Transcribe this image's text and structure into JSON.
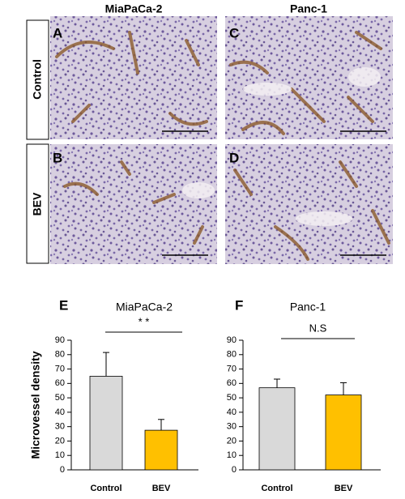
{
  "panels": {
    "columns": [
      "MiaPaCa-2",
      "Panc-1"
    ],
    "rows": [
      "Control",
      "BEV"
    ],
    "letters": [
      "A",
      "B",
      "C",
      "D"
    ]
  },
  "chart_data": [
    {
      "type": "bar",
      "letter": "E",
      "title": "MiaPaCa-2",
      "y_label": "Microvessel density",
      "categories": [
        "Control",
        "BEV"
      ],
      "values": [
        65,
        27.5
      ],
      "errors": [
        16.5,
        7.5
      ],
      "colors": [
        "#d9d9d9",
        "#ffc000"
      ],
      "ylim": [
        0,
        90
      ],
      "yticks": [
        0,
        10,
        20,
        30,
        40,
        50,
        60,
        70,
        80,
        90
      ],
      "annotation": "* *"
    },
    {
      "type": "bar",
      "letter": "F",
      "title": "Panc-1",
      "categories": [
        "Control",
        "BEV"
      ],
      "values": [
        57,
        52
      ],
      "errors": [
        6,
        8.5
      ],
      "colors": [
        "#d9d9d9",
        "#ffc000"
      ],
      "ylim": [
        0,
        90
      ],
      "yticks": [
        0,
        10,
        20,
        30,
        40,
        50,
        60,
        70,
        80,
        90
      ],
      "annotation": "N.S"
    }
  ]
}
